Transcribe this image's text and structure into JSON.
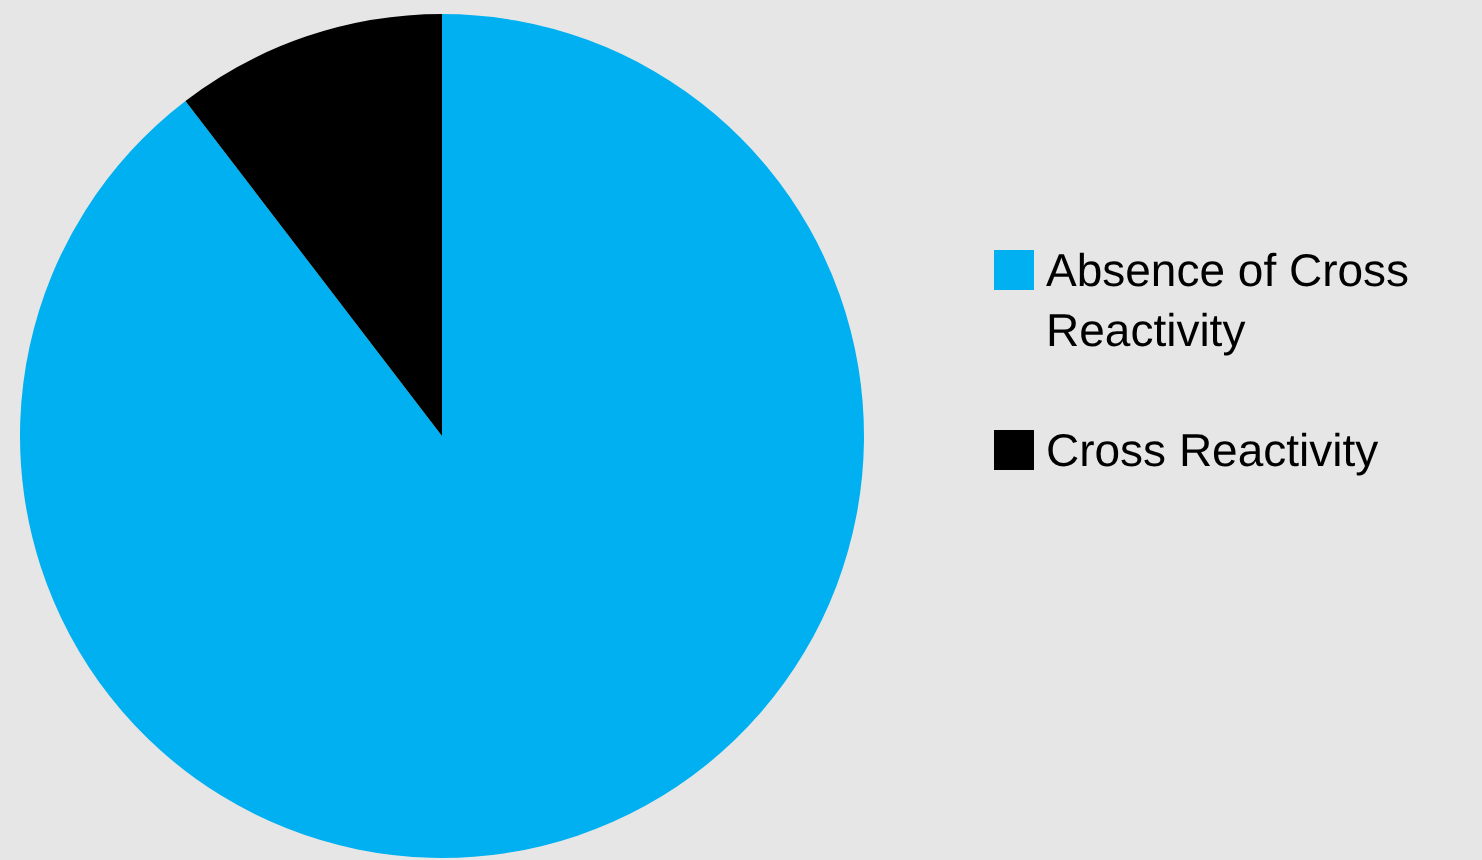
{
  "chart_data": {
    "type": "pie",
    "categories": [
      "Absence of Cross Reactivity",
      "Cross Reactivity"
    ],
    "values": [
      89.6,
      10.4
    ],
    "colors": [
      "#00b0f0",
      "#000000"
    ],
    "legend": "right"
  }
}
